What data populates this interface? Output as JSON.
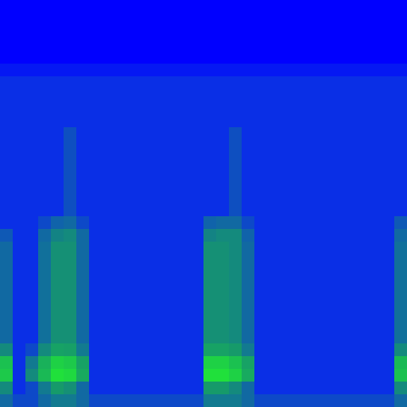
{
  "chart_data": {
    "type": "heatmap",
    "tick_labels": false,
    "zlim": [
      0,
      1
    ],
    "cells": [
      [
        0,
        0,
        0,
        0,
        0,
        0,
        0,
        0,
        0,
        0,
        0,
        0,
        0,
        0,
        0,
        0,
        0,
        0,
        0,
        0,
        0,
        0,
        0,
        0,
        0,
        0,
        0,
        0,
        0,
        0,
        0,
        0
      ],
      [
        0,
        0,
        0,
        0,
        0,
        0,
        0,
        0,
        0,
        0,
        0,
        0,
        0,
        0,
        0,
        0,
        0,
        0,
        0,
        0,
        0,
        0,
        0,
        0,
        0,
        0,
        0,
        0,
        0,
        0,
        0,
        0
      ],
      [
        0,
        0,
        0,
        0,
        0,
        0,
        0,
        0,
        0,
        0,
        0,
        0,
        0,
        0,
        0,
        0,
        0,
        0,
        0,
        0,
        0,
        0,
        0,
        0,
        0,
        0,
        0,
        0,
        0,
        0,
        0,
        0
      ],
      [
        0,
        0,
        0,
        0,
        0,
        0,
        0,
        0,
        0,
        0,
        0,
        0,
        0,
        0,
        0,
        0,
        0,
        0,
        0,
        0,
        0,
        0,
        0,
        0,
        0,
        0,
        0,
        0,
        0,
        0,
        0,
        0
      ],
      [
        0,
        0,
        0,
        0,
        0,
        0,
        0,
        0,
        0,
        0,
        0,
        0,
        0,
        0,
        0,
        0,
        0,
        0,
        0,
        0,
        0,
        0,
        0,
        0,
        0,
        0,
        0,
        0,
        0,
        0,
        0,
        0
      ],
      [
        0.06,
        0.06,
        0.06,
        0.06,
        0.06,
        0.06,
        0.06,
        0.06,
        0.06,
        0.06,
        0.06,
        0.06,
        0.06,
        0.06,
        0.06,
        0.06,
        0.06,
        0.06,
        0.06,
        0.06,
        0.06,
        0.06,
        0.06,
        0.06,
        0.06,
        0.06,
        0.06,
        0.06,
        0.06,
        0.06,
        0.06,
        0.06
      ],
      [
        0.12,
        0.12,
        0.12,
        0.12,
        0.12,
        0.12,
        0.12,
        0.12,
        0.12,
        0.12,
        0.12,
        0.12,
        0.12,
        0.12,
        0.12,
        0.12,
        0.12,
        0.12,
        0.12,
        0.12,
        0.12,
        0.12,
        0.12,
        0.12,
        0.12,
        0.12,
        0.12,
        0.12,
        0.12,
        0.12,
        0.12,
        0.12
      ],
      [
        0.12,
        0.12,
        0.12,
        0.12,
        0.12,
        0.12,
        0.12,
        0.12,
        0.12,
        0.12,
        0.12,
        0.12,
        0.12,
        0.12,
        0.12,
        0.12,
        0.12,
        0.12,
        0.12,
        0.12,
        0.12,
        0.12,
        0.12,
        0.12,
        0.12,
        0.12,
        0.12,
        0.12,
        0.12,
        0.12,
        0.12,
        0.12
      ],
      [
        0.12,
        0.12,
        0.12,
        0.12,
        0.12,
        0.12,
        0.12,
        0.12,
        0.12,
        0.12,
        0.12,
        0.12,
        0.12,
        0.12,
        0.12,
        0.12,
        0.12,
        0.12,
        0.12,
        0.12,
        0.12,
        0.12,
        0.12,
        0.12,
        0.12,
        0.12,
        0.12,
        0.12,
        0.12,
        0.12,
        0.12,
        0.12
      ],
      [
        0.12,
        0.12,
        0.12,
        0.12,
        0.12,
        0.12,
        0.12,
        0.12,
        0.12,
        0.12,
        0.12,
        0.12,
        0.12,
        0.12,
        0.12,
        0.12,
        0.12,
        0.12,
        0.12,
        0.12,
        0.12,
        0.12,
        0.12,
        0.12,
        0.12,
        0.12,
        0.12,
        0.12,
        0.12,
        0.12,
        0.12,
        0.12
      ],
      [
        0.12,
        0.12,
        0.12,
        0.12,
        0.12,
        0.22,
        0.12,
        0.12,
        0.12,
        0.12,
        0.12,
        0.12,
        0.12,
        0.12,
        0.12,
        0.12,
        0.12,
        0.12,
        0.22,
        0.12,
        0.12,
        0.12,
        0.12,
        0.12,
        0.12,
        0.12,
        0.12,
        0.12,
        0.12,
        0.12,
        0.12,
        0.12
      ],
      [
        0.12,
        0.12,
        0.12,
        0.12,
        0.12,
        0.22,
        0.12,
        0.12,
        0.12,
        0.12,
        0.12,
        0.12,
        0.12,
        0.12,
        0.12,
        0.12,
        0.12,
        0.12,
        0.22,
        0.12,
        0.12,
        0.12,
        0.12,
        0.12,
        0.12,
        0.12,
        0.12,
        0.12,
        0.12,
        0.12,
        0.12,
        0.12
      ],
      [
        0.12,
        0.12,
        0.12,
        0.12,
        0.12,
        0.22,
        0.12,
        0.12,
        0.12,
        0.12,
        0.12,
        0.12,
        0.12,
        0.12,
        0.12,
        0.12,
        0.12,
        0.12,
        0.22,
        0.12,
        0.12,
        0.12,
        0.12,
        0.12,
        0.12,
        0.12,
        0.12,
        0.12,
        0.12,
        0.12,
        0.12,
        0.12
      ],
      [
        0.12,
        0.12,
        0.12,
        0.12,
        0.12,
        0.22,
        0.12,
        0.12,
        0.12,
        0.12,
        0.12,
        0.12,
        0.12,
        0.12,
        0.12,
        0.12,
        0.12,
        0.12,
        0.22,
        0.12,
        0.12,
        0.12,
        0.12,
        0.12,
        0.12,
        0.12,
        0.12,
        0.12,
        0.12,
        0.12,
        0.12,
        0.12
      ],
      [
        0.12,
        0.12,
        0.12,
        0.12,
        0.12,
        0.22,
        0.12,
        0.12,
        0.12,
        0.12,
        0.12,
        0.12,
        0.12,
        0.12,
        0.12,
        0.12,
        0.12,
        0.12,
        0.22,
        0.12,
        0.12,
        0.12,
        0.12,
        0.12,
        0.12,
        0.12,
        0.12,
        0.12,
        0.12,
        0.12,
        0.12,
        0.12
      ],
      [
        0.12,
        0.12,
        0.12,
        0.12,
        0.12,
        0.22,
        0.12,
        0.12,
        0.12,
        0.12,
        0.12,
        0.12,
        0.12,
        0.12,
        0.12,
        0.12,
        0.12,
        0.12,
        0.22,
        0.12,
        0.12,
        0.12,
        0.12,
        0.12,
        0.12,
        0.12,
        0.12,
        0.12,
        0.12,
        0.12,
        0.12,
        0.12
      ],
      [
        0.12,
        0.12,
        0.12,
        0.12,
        0.12,
        0.22,
        0.12,
        0.12,
        0.12,
        0.12,
        0.12,
        0.12,
        0.12,
        0.12,
        0.12,
        0.12,
        0.12,
        0.12,
        0.22,
        0.12,
        0.12,
        0.12,
        0.12,
        0.12,
        0.12,
        0.12,
        0.12,
        0.12,
        0.12,
        0.12,
        0.12,
        0.12
      ],
      [
        0.12,
        0.12,
        0.12,
        0.2,
        0.28,
        0.3,
        0.2,
        0.12,
        0.12,
        0.12,
        0.12,
        0.12,
        0.12,
        0.12,
        0.12,
        0.12,
        0.28,
        0.3,
        0.3,
        0.2,
        0.12,
        0.12,
        0.12,
        0.12,
        0.12,
        0.12,
        0.12,
        0.12,
        0.12,
        0.12,
        0.12,
        0.25
      ],
      [
        0.25,
        0.12,
        0.12,
        0.3,
        0.38,
        0.4,
        0.3,
        0.12,
        0.12,
        0.12,
        0.12,
        0.12,
        0.12,
        0.12,
        0.12,
        0.12,
        0.38,
        0.4,
        0.4,
        0.28,
        0.12,
        0.12,
        0.12,
        0.12,
        0.12,
        0.12,
        0.12,
        0.12,
        0.12,
        0.12,
        0.12,
        0.3
      ],
      [
        0.3,
        0.12,
        0.12,
        0.32,
        0.42,
        0.42,
        0.3,
        0.12,
        0.12,
        0.12,
        0.12,
        0.12,
        0.12,
        0.12,
        0.12,
        0.12,
        0.42,
        0.42,
        0.4,
        0.3,
        0.12,
        0.12,
        0.12,
        0.12,
        0.12,
        0.12,
        0.12,
        0.12,
        0.12,
        0.12,
        0.12,
        0.32
      ],
      [
        0.3,
        0.12,
        0.12,
        0.32,
        0.42,
        0.42,
        0.3,
        0.12,
        0.12,
        0.12,
        0.12,
        0.12,
        0.12,
        0.12,
        0.12,
        0.12,
        0.42,
        0.42,
        0.4,
        0.3,
        0.12,
        0.12,
        0.12,
        0.12,
        0.12,
        0.12,
        0.12,
        0.12,
        0.12,
        0.12,
        0.12,
        0.32
      ],
      [
        0.3,
        0.12,
        0.12,
        0.32,
        0.42,
        0.42,
        0.3,
        0.12,
        0.12,
        0.12,
        0.12,
        0.12,
        0.12,
        0.12,
        0.12,
        0.12,
        0.42,
        0.42,
        0.4,
        0.3,
        0.12,
        0.12,
        0.12,
        0.12,
        0.12,
        0.12,
        0.12,
        0.12,
        0.12,
        0.12,
        0.12,
        0.32
      ],
      [
        0.3,
        0.12,
        0.12,
        0.32,
        0.42,
        0.42,
        0.3,
        0.12,
        0.12,
        0.12,
        0.12,
        0.12,
        0.12,
        0.12,
        0.12,
        0.12,
        0.42,
        0.42,
        0.4,
        0.3,
        0.12,
        0.12,
        0.12,
        0.12,
        0.12,
        0.12,
        0.12,
        0.12,
        0.12,
        0.12,
        0.12,
        0.32
      ],
      [
        0.3,
        0.12,
        0.12,
        0.32,
        0.42,
        0.42,
        0.3,
        0.12,
        0.12,
        0.12,
        0.12,
        0.12,
        0.12,
        0.12,
        0.12,
        0.12,
        0.42,
        0.42,
        0.4,
        0.3,
        0.12,
        0.12,
        0.12,
        0.12,
        0.12,
        0.12,
        0.12,
        0.12,
        0.12,
        0.12,
        0.12,
        0.32
      ],
      [
        0.3,
        0.12,
        0.12,
        0.32,
        0.42,
        0.42,
        0.3,
        0.12,
        0.12,
        0.12,
        0.12,
        0.12,
        0.12,
        0.12,
        0.12,
        0.12,
        0.42,
        0.42,
        0.4,
        0.3,
        0.12,
        0.12,
        0.12,
        0.12,
        0.12,
        0.12,
        0.12,
        0.12,
        0.12,
        0.12,
        0.12,
        0.32
      ],
      [
        0.3,
        0.12,
        0.12,
        0.32,
        0.42,
        0.42,
        0.3,
        0.12,
        0.12,
        0.12,
        0.12,
        0.12,
        0.12,
        0.12,
        0.12,
        0.12,
        0.42,
        0.42,
        0.4,
        0.3,
        0.12,
        0.12,
        0.12,
        0.12,
        0.12,
        0.12,
        0.12,
        0.12,
        0.12,
        0.12,
        0.12,
        0.32
      ],
      [
        0.3,
        0.12,
        0.12,
        0.32,
        0.42,
        0.42,
        0.3,
        0.12,
        0.12,
        0.12,
        0.12,
        0.12,
        0.12,
        0.12,
        0.12,
        0.12,
        0.42,
        0.42,
        0.4,
        0.3,
        0.12,
        0.12,
        0.12,
        0.12,
        0.12,
        0.12,
        0.12,
        0.12,
        0.12,
        0.12,
        0.12,
        0.32
      ],
      [
        0.4,
        0.12,
        0.2,
        0.4,
        0.5,
        0.48,
        0.35,
        0.12,
        0.12,
        0.12,
        0.12,
        0.12,
        0.12,
        0.12,
        0.12,
        0.12,
        0.5,
        0.5,
        0.45,
        0.35,
        0.12,
        0.12,
        0.12,
        0.12,
        0.12,
        0.12,
        0.12,
        0.12,
        0.12,
        0.12,
        0.12,
        0.4
      ],
      [
        0.7,
        0.12,
        0.35,
        0.6,
        0.8,
        0.75,
        0.5,
        0.12,
        0.12,
        0.12,
        0.12,
        0.12,
        0.12,
        0.12,
        0.12,
        0.12,
        0.8,
        0.8,
        0.7,
        0.5,
        0.12,
        0.12,
        0.12,
        0.12,
        0.12,
        0.12,
        0.12,
        0.12,
        0.12,
        0.12,
        0.12,
        0.65
      ],
      [
        0.75,
        0.12,
        0.4,
        0.65,
        0.9,
        0.85,
        0.55,
        0.12,
        0.12,
        0.12,
        0.12,
        0.12,
        0.12,
        0.12,
        0.12,
        0.12,
        0.9,
        0.9,
        0.8,
        0.55,
        0.12,
        0.12,
        0.12,
        0.12,
        0.12,
        0.12,
        0.12,
        0.12,
        0.12,
        0.12,
        0.12,
        0.7
      ],
      [
        0.4,
        0.12,
        0.2,
        0.35,
        0.45,
        0.42,
        0.3,
        0.12,
        0.12,
        0.12,
        0.12,
        0.12,
        0.12,
        0.12,
        0.12,
        0.12,
        0.45,
        0.45,
        0.4,
        0.3,
        0.12,
        0.12,
        0.12,
        0.12,
        0.12,
        0.12,
        0.12,
        0.12,
        0.12,
        0.12,
        0.12,
        0.4
      ],
      [
        0.3,
        0.2,
        0.2,
        0.3,
        0.35,
        0.35,
        0.3,
        0.2,
        0.2,
        0.2,
        0.2,
        0.2,
        0.2,
        0.2,
        0.2,
        0.2,
        0.35,
        0.35,
        0.35,
        0.3,
        0.2,
        0.2,
        0.2,
        0.2,
        0.2,
        0.2,
        0.2,
        0.2,
        0.2,
        0.2,
        0.2,
        0.3
      ]
    ]
  }
}
